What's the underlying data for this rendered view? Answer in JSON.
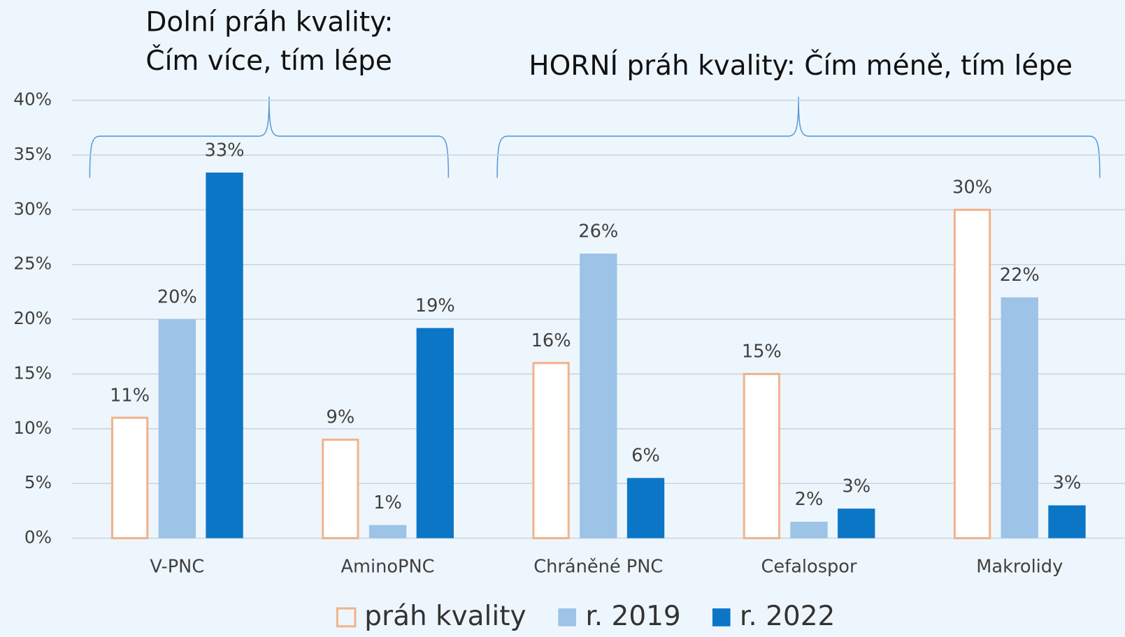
{
  "chart_data": {
    "type": "bar",
    "annotations": [
      "Dolní práh kvality:",
      "Čím více, tím lépe",
      "HORNÍ práh kvality: Čím méně, tím lépe"
    ],
    "categories": [
      "V-PNC",
      "AminoPNC",
      "Chráněné PNC",
      "Cefalospor",
      "Makrolidy"
    ],
    "series": [
      {
        "name": "práh kvality",
        "color": "#f0b48c",
        "outline": true,
        "values": [
          11,
          9,
          16,
          15,
          30
        ],
        "value_labels": [
          "11%",
          "9%",
          "16%",
          "15%",
          "30%"
        ]
      },
      {
        "name": "r. 2019",
        "color": "#9dc3e6",
        "values": [
          20,
          1.2,
          26,
          1.5,
          22
        ],
        "value_labels": [
          "20%",
          "1%",
          "26%",
          "2%",
          "22%"
        ]
      },
      {
        "name": "r. 2022",
        "color": "#0b76c6",
        "values": [
          33.4,
          19.2,
          5.5,
          2.7,
          3
        ],
        "value_labels": [
          "33%",
          "19%",
          "6%",
          "3%",
          "3%"
        ]
      }
    ],
    "ylim": [
      0,
      40
    ],
    "yticks": [
      {
        "value": 0,
        "label": "0%"
      },
      {
        "value": 5,
        "label": "5%"
      },
      {
        "value": 10,
        "label": "10%"
      },
      {
        "value": 15,
        "label": "15%"
      },
      {
        "value": 20,
        "label": "20%"
      },
      {
        "value": 25,
        "label": "25%"
      },
      {
        "value": 30,
        "label": "30%"
      },
      {
        "value": 35,
        "label": "35%"
      },
      {
        "value": 40,
        "label": "40%"
      }
    ],
    "grid": true
  }
}
